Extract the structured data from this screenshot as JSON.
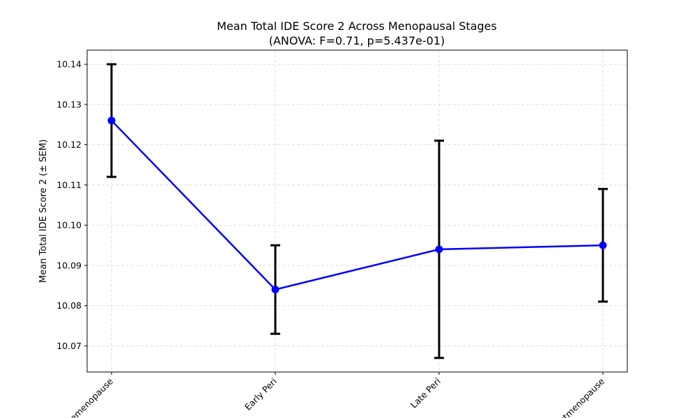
{
  "chart_data": {
    "type": "line",
    "title_line1": "Mean Total IDE Score 2 Across Menopausal Stages",
    "title_line2": "(ANOVA: F=0.71, p=5.437e-01)",
    "xlabel": "",
    "ylabel": "Mean Total IDE Score 2 (± SEM)",
    "categories": [
      "Premenopause",
      "Early Peri",
      "Late Peri",
      "Postmenopause"
    ],
    "values": [
      10.126,
      10.084,
      10.094,
      10.095
    ],
    "errors": [
      0.014,
      0.011,
      0.027,
      0.014
    ],
    "ylim": [
      10.0635,
      10.1435
    ],
    "yticks": [
      "10.07",
      "10.08",
      "10.09",
      "10.10",
      "10.11",
      "10.12",
      "10.13",
      "10.14"
    ],
    "ytick_values": [
      10.07,
      10.08,
      10.09,
      10.1,
      10.11,
      10.12,
      10.13,
      10.14
    ],
    "grid": true,
    "xtick_rotation": 45,
    "line_color": "#0000ff",
    "marker_color": "#0000ff",
    "errorbar_color": "#000000"
  }
}
